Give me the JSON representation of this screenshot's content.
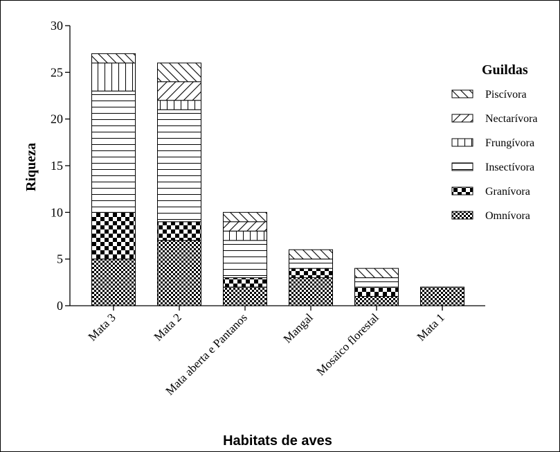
{
  "chart_data": {
    "type": "bar",
    "stacked": true,
    "xlabel": "Habitats de aves",
    "ylabel": "Riqueza",
    "ylim": [
      0,
      30
    ],
    "yticks": [
      0,
      5,
      10,
      15,
      20,
      25,
      30
    ],
    "categories": [
      "Mata 3",
      "Mata 2",
      "Mata aberta e Pantanos",
      "Mangal",
      "Mosaico florestal",
      "Mata 1"
    ],
    "legend_title": "Guildas",
    "legend_position": "right",
    "series": [
      {
        "name": "Omnívora",
        "pattern": "check-small",
        "values": [
          5,
          7,
          2,
          3,
          1,
          2
        ]
      },
      {
        "name": "Granívora",
        "pattern": "check-large",
        "values": [
          5,
          2,
          1,
          1,
          1,
          0
        ]
      },
      {
        "name": "Insectívora",
        "pattern": "hlines",
        "values": [
          13,
          12,
          4,
          1,
          1,
          0
        ]
      },
      {
        "name": "Frungívora",
        "pattern": "vlines",
        "values": [
          3,
          1,
          1,
          0,
          0,
          0
        ]
      },
      {
        "name": "Nectarívora",
        "pattern": "diag-up",
        "values": [
          0,
          2,
          1,
          0,
          0,
          0
        ]
      },
      {
        "name": "Piscívora",
        "pattern": "diag-down",
        "values": [
          1,
          2,
          1,
          1,
          1,
          0
        ]
      }
    ]
  }
}
